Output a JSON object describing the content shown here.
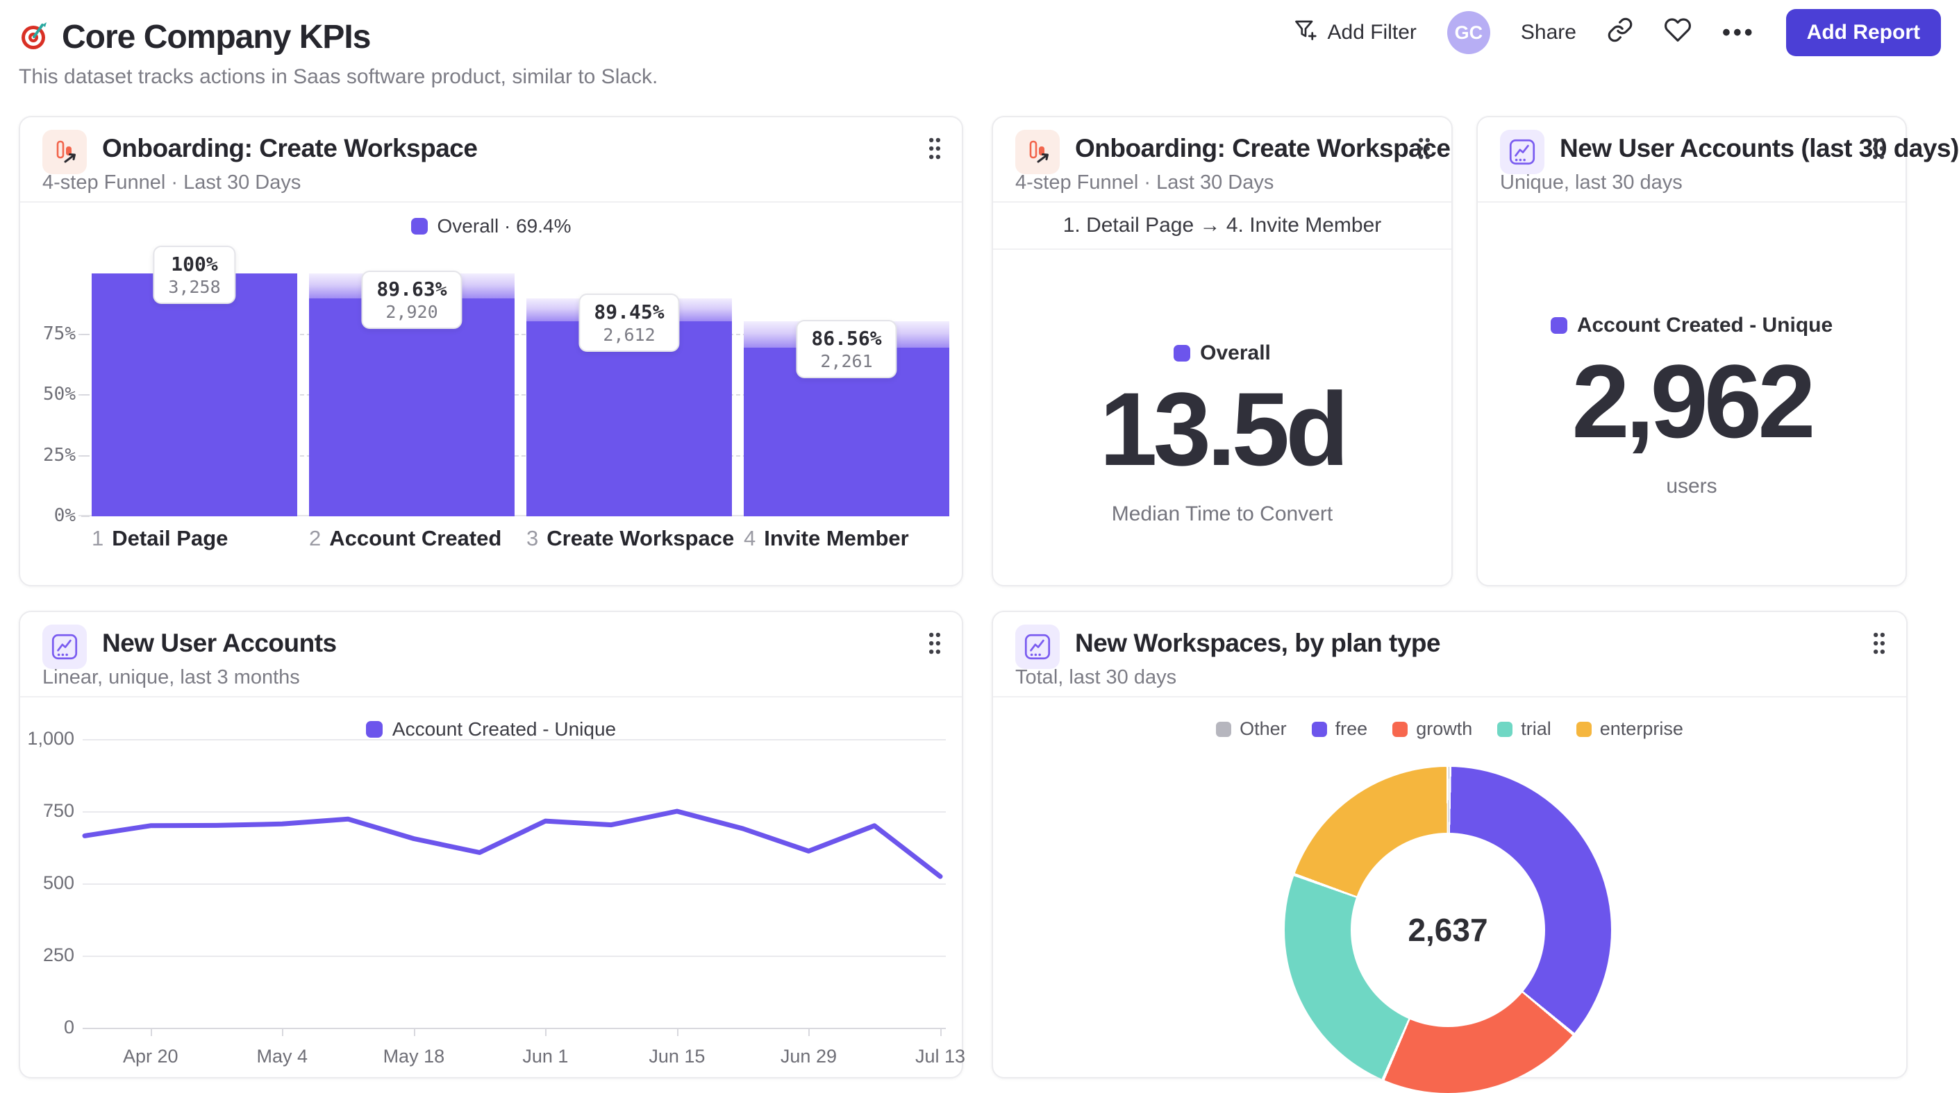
{
  "header": {
    "title": "Core Company KPIs",
    "subtitle": "This dataset tracks actions in Saas software product, similar to Slack.",
    "actions": {
      "add_filter": "Add Filter",
      "avatar": "GC",
      "share": "Share",
      "add_report": "Add Report"
    }
  },
  "colors": {
    "purple": "#6C55EC",
    "coral": "#F7674E",
    "teal": "#6FD7C4",
    "amber": "#F5B63E",
    "gray": "#B6B6BE",
    "accent_button": "#4B3FD6"
  },
  "cards": {
    "funnel": {
      "icon": "funnel-chart-icon",
      "title": "Onboarding: Create Workspace",
      "subtitle": "4-step Funnel · Last 30 Days"
    },
    "time_to_convert": {
      "icon": "funnel-chart-icon",
      "title": "Onboarding: Create Workspace",
      "subtitle": "4-step Funnel · Last 30 Days",
      "range_label": "1. Detail Page → 4. Invite Member",
      "legend_label": "Overall",
      "value": "13.5d",
      "caption": "Median Time to Convert"
    },
    "new_accounts_30d": {
      "icon": "insights-chart-icon",
      "title": "New User Accounts (last 30 days)",
      "subtitle": "Unique, last 30 days",
      "legend_label": "Account Created - Unique",
      "value": "2,962",
      "caption": "users"
    },
    "new_accounts_trend": {
      "icon": "insights-chart-icon",
      "title": "New User Accounts",
      "subtitle": "Linear, unique, last 3 months"
    },
    "workspaces_by_plan": {
      "icon": "insights-chart-icon",
      "title": "New Workspaces, by plan type",
      "subtitle": "Total, last 30 days"
    }
  },
  "chart_data": [
    {
      "id": "onboarding-funnel",
      "type": "bar",
      "title": "Onboarding: Create Workspace",
      "legend": [
        {
          "label": "Overall · 69.4%",
          "color": "#6C55EC"
        }
      ],
      "ylim": [
        0,
        100
      ],
      "grid": true,
      "y_ticks": [
        {
          "label": "75%",
          "value": 75
        },
        {
          "label": "50%",
          "value": 50
        },
        {
          "label": "25%",
          "value": 25
        },
        {
          "label": "0%",
          "value": 0
        }
      ],
      "bar_color": "#6C55EC",
      "steps": [
        {
          "step": "1",
          "label": "Detail Page",
          "conversion_from_prev": "100%",
          "count": 3258,
          "count_label": "3,258",
          "cumulative_pct": 100
        },
        {
          "step": "2",
          "label": "Account Created",
          "conversion_from_prev": "89.63%",
          "count": 2920,
          "count_label": "2,920",
          "cumulative_pct": 89.63
        },
        {
          "step": "3",
          "label": "Create Workspace",
          "conversion_from_prev": "89.45%",
          "count": 2612,
          "count_label": "2,612",
          "cumulative_pct": 80.17
        },
        {
          "step": "4",
          "label": "Invite Member",
          "conversion_from_prev": "86.56%",
          "count": 2261,
          "count_label": "2,261",
          "cumulative_pct": 69.4
        }
      ]
    },
    {
      "id": "new-user-accounts-trend",
      "type": "line",
      "legend": [
        {
          "label": "Account Created - Unique",
          "color": "#6C55EC"
        }
      ],
      "ylim": [
        0,
        1000
      ],
      "grid": true,
      "legend_position": "top",
      "y_ticks": [
        {
          "label": "1,000",
          "value": 1000
        },
        {
          "label": "750",
          "value": 750
        },
        {
          "label": "500",
          "value": 500
        },
        {
          "label": "250",
          "value": 250
        },
        {
          "label": "0",
          "value": 0
        }
      ],
      "x_tick_labels": [
        "Apr 20",
        "May 4",
        "May 18",
        "Jun 1",
        "Jun 15",
        "Jun 29",
        "Jul 13"
      ],
      "series": [
        {
          "name": "Account Created - Unique",
          "color": "#6C55EC",
          "values": [
            665,
            700,
            701,
            706,
            723,
            655,
            607,
            716,
            703,
            750,
            690,
            612,
            700,
            524
          ]
        }
      ]
    },
    {
      "id": "new-workspaces-by-plan",
      "type": "pie",
      "total": 2637,
      "total_label": "2,637",
      "legend_position": "top",
      "slices": [
        {
          "label": "Other",
          "value": 5,
          "color": "#B6B6BE"
        },
        {
          "label": "free",
          "value": 945,
          "color": "#6C55EC"
        },
        {
          "label": "growth",
          "value": 540,
          "color": "#F7674E"
        },
        {
          "label": "trial",
          "value": 633,
          "color": "#6FD7C4"
        },
        {
          "label": "enterprise",
          "value": 514,
          "color": "#F5B63E"
        }
      ]
    }
  ]
}
